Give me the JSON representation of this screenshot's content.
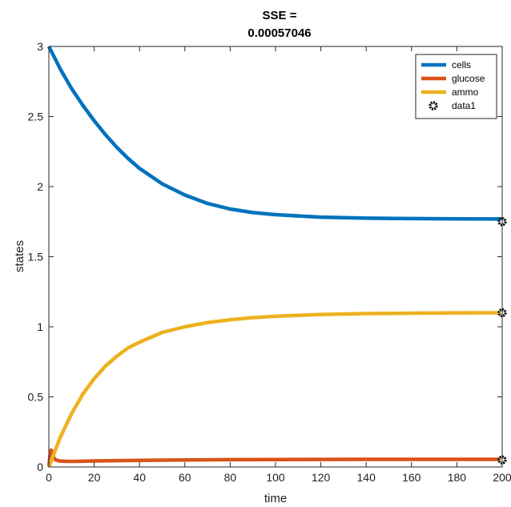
{
  "chart_data": {
    "type": "line",
    "title": [
      "SSE =",
      "0.00057046"
    ],
    "xlabel": "time",
    "ylabel": "states",
    "xlim": [
      0,
      200
    ],
    "ylim": [
      0,
      3
    ],
    "xticks": [
      0,
      20,
      40,
      60,
      80,
      100,
      120,
      140,
      160,
      180,
      200
    ],
    "yticks": [
      0,
      0.5,
      1,
      1.5,
      2,
      2.5,
      3
    ],
    "ytick_labels": [
      "0",
      "0.5",
      "1",
      "1.5",
      "2",
      "2.5",
      "3"
    ],
    "grid": false,
    "legend_position": "top-right",
    "series": [
      {
        "name": "cells",
        "style": "line",
        "color": "#0072BD",
        "x": [
          0,
          5,
          10,
          15,
          20,
          25,
          30,
          35,
          40,
          50,
          60,
          70,
          80,
          90,
          100,
          120,
          140,
          160,
          180,
          200
        ],
        "y": [
          3.0,
          2.84,
          2.7,
          2.58,
          2.47,
          2.37,
          2.28,
          2.2,
          2.13,
          2.02,
          1.94,
          1.88,
          1.84,
          1.815,
          1.8,
          1.782,
          1.775,
          1.772,
          1.77,
          1.769
        ]
      },
      {
        "name": "glucose",
        "style": "line",
        "color": "#D95319",
        "x": [
          0,
          0.5,
          1,
          1.5,
          2,
          3,
          5,
          8,
          12,
          20,
          40,
          60,
          80,
          100,
          140,
          200
        ],
        "y": [
          0.0,
          0.08,
          0.12,
          0.1,
          0.07,
          0.05,
          0.042,
          0.04,
          0.04,
          0.043,
          0.047,
          0.05,
          0.052,
          0.053,
          0.054,
          0.054
        ]
      },
      {
        "name": "ammo",
        "style": "line",
        "color": "#EDB120",
        "x": [
          0,
          5,
          10,
          15,
          20,
          25,
          30,
          35,
          40,
          50,
          60,
          70,
          80,
          90,
          100,
          120,
          140,
          160,
          180,
          200
        ],
        "y": [
          0.0,
          0.21,
          0.38,
          0.52,
          0.63,
          0.72,
          0.79,
          0.85,
          0.89,
          0.96,
          1.0,
          1.03,
          1.05,
          1.065,
          1.075,
          1.088,
          1.094,
          1.097,
          1.099,
          1.1
        ]
      },
      {
        "name": "data1",
        "style": "marker",
        "color": "#000000",
        "x": [
          200,
          200,
          200
        ],
        "y": [
          1.75,
          1.1,
          0.05
        ]
      }
    ]
  }
}
